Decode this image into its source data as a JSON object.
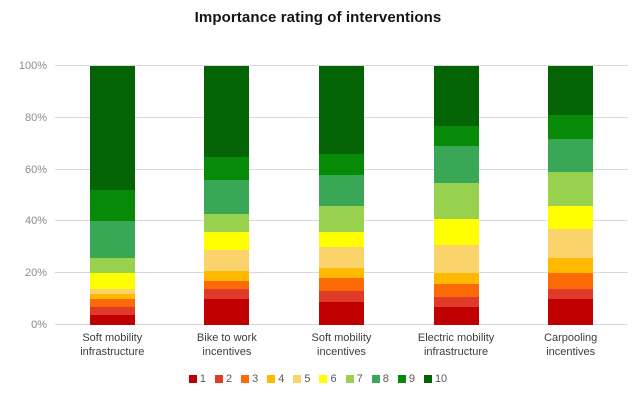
{
  "title": "Importance rating of interventions",
  "chart_data": {
    "type": "bar",
    "subtype": "stacked-100-percent",
    "title": "Importance rating of interventions",
    "xlabel": "",
    "ylabel": "",
    "ylim": [
      0,
      100
    ],
    "grid": true,
    "legend_position": "bottom",
    "y_ticks": [
      {
        "value": 0,
        "label": "0%"
      },
      {
        "value": 20,
        "label": "20%"
      },
      {
        "value": 40,
        "label": "40%"
      },
      {
        "value": 60,
        "label": "60%"
      },
      {
        "value": 80,
        "label": "80%"
      },
      {
        "value": 100,
        "label": "100%"
      }
    ],
    "categories": [
      "Soft mobility\ninfrastructure",
      "Bike to work\nincentives",
      "Soft mobility\nincentives",
      "Electric mobility\ninfrastructure",
      "Carpooling\nincentives"
    ],
    "series": [
      {
        "name": "1",
        "color": "#c00000",
        "values": [
          4,
          10,
          9,
          7,
          10
        ]
      },
      {
        "name": "2",
        "color": "#df3b28",
        "values": [
          3,
          4,
          4,
          4,
          4
        ]
      },
      {
        "name": "3",
        "color": "#fb6a07",
        "values": [
          3,
          3,
          5,
          5,
          6
        ]
      },
      {
        "name": "4",
        "color": "#ffba00",
        "values": [
          2,
          4,
          4,
          4,
          6
        ]
      },
      {
        "name": "5",
        "color": "#fad36b",
        "values": [
          2,
          8,
          8,
          11,
          11
        ]
      },
      {
        "name": "6",
        "color": "#ffff00",
        "values": [
          6,
          7,
          6,
          10,
          9
        ]
      },
      {
        "name": "7",
        "color": "#98d14e",
        "values": [
          6,
          7,
          10,
          14,
          13
        ]
      },
      {
        "name": "8",
        "color": "#39a756",
        "values": [
          14,
          13,
          12,
          14,
          13
        ]
      },
      {
        "name": "9",
        "color": "#078a07",
        "values": [
          12,
          9,
          8,
          8,
          9
        ]
      },
      {
        "name": "10",
        "color": "#046304",
        "values": [
          48,
          35,
          34,
          23,
          19
        ]
      }
    ]
  }
}
